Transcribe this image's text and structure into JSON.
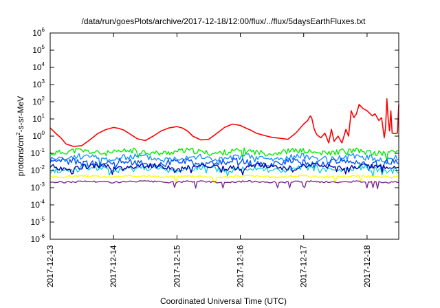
{
  "chart_data": {
    "type": "line",
    "title": "/data/run/goesPlots/archive/2017-12-18/12:00/flux/../flux/5daysEarthFluxes.txt",
    "xlabel": "Coordinated Universal Time (UTC)",
    "ylabel_parts": [
      "protons/cm",
      "2",
      "-s-sr-MeV"
    ],
    "xlim": [
      "2017-12-13",
      "2017-12-18T12:00"
    ],
    "ylim": [
      1e-06,
      1000000.0
    ],
    "y_scale": "log",
    "grid": false,
    "legend": "none",
    "x_ticks": [
      "2017-12-13",
      "2017-12-14",
      "2017-12-15",
      "2017-12-16",
      "2017-12-17",
      "2017-12-18"
    ],
    "y_ticks": [
      {
        "base": "10",
        "exp": "-6"
      },
      {
        "base": "10",
        "exp": "-5"
      },
      {
        "base": "10",
        "exp": "-4"
      },
      {
        "base": "10",
        "exp": "-3"
      },
      {
        "base": "10",
        "exp": "-2"
      },
      {
        "base": "10",
        "exp": "-1"
      },
      {
        "base": "10",
        "exp": "0"
      },
      {
        "base": "10",
        "exp": "1"
      },
      {
        "base": "10",
        "exp": "2"
      },
      {
        "base": "10",
        "exp": "3"
      },
      {
        "base": "10",
        "exp": "4"
      },
      {
        "base": "10",
        "exp": "5"
      },
      {
        "base": "10",
        "exp": "6"
      }
    ],
    "series": [
      {
        "color": "#ff0000",
        "width": 1.6,
        "points": [
          [
            "2017-12-13T00:00",
            3
          ],
          [
            "2017-12-13T02:00",
            1.5
          ],
          [
            "2017-12-13T04:00",
            0.8
          ],
          [
            "2017-12-13T06:00",
            0.35
          ],
          [
            "2017-12-13T09:00",
            0.25
          ],
          [
            "2017-12-13T12:00",
            0.28
          ],
          [
            "2017-12-13T15:00",
            0.6
          ],
          [
            "2017-12-13T18:00",
            1.4
          ],
          [
            "2017-12-13T21:00",
            2.4
          ],
          [
            "2017-12-14T00:00",
            3.2
          ],
          [
            "2017-12-14T02:00",
            2.8
          ],
          [
            "2017-12-14T04:00",
            2.2
          ],
          [
            "2017-12-14T06:00",
            1.4
          ],
          [
            "2017-12-14T09:00",
            0.7
          ],
          [
            "2017-12-14T12:00",
            0.55
          ],
          [
            "2017-12-14T15:00",
            1.0
          ],
          [
            "2017-12-14T18:00",
            2.0
          ],
          [
            "2017-12-14T21:00",
            3.0
          ],
          [
            "2017-12-15T00:00",
            3.6
          ],
          [
            "2017-12-15T02:00",
            3.0
          ],
          [
            "2017-12-15T04:00",
            2.0
          ],
          [
            "2017-12-15T06:00",
            1.0
          ],
          [
            "2017-12-15T09:00",
            0.6
          ],
          [
            "2017-12-15T12:00",
            0.65
          ],
          [
            "2017-12-15T15:00",
            1.4
          ],
          [
            "2017-12-15T18:00",
            3.2
          ],
          [
            "2017-12-15T21:00",
            5.0
          ],
          [
            "2017-12-16T00:00",
            4.2
          ],
          [
            "2017-12-16T02:00",
            3.0
          ],
          [
            "2017-12-16T04:00",
            2.2
          ],
          [
            "2017-12-16T06:00",
            1.5
          ],
          [
            "2017-12-16T09:00",
            1.1
          ],
          [
            "2017-12-16T12:00",
            0.85
          ],
          [
            "2017-12-16T15:00",
            0.75
          ],
          [
            "2017-12-16T18:00",
            0.65
          ],
          [
            "2017-12-16T21:00",
            1.5
          ],
          [
            "2017-12-17T00:00",
            5.0
          ],
          [
            "2017-12-17T01:30",
            8.0
          ],
          [
            "2017-12-17T02:30",
            15
          ],
          [
            "2017-12-17T03:00",
            12
          ],
          [
            "2017-12-17T04:00",
            2.5
          ],
          [
            "2017-12-17T05:00",
            1.2
          ],
          [
            "2017-12-17T06:30",
            0.8
          ],
          [
            "2017-12-17T08:00",
            1.5
          ],
          [
            "2017-12-17T09:30",
            0.4
          ],
          [
            "2017-12-17T10:30",
            2.5
          ],
          [
            "2017-12-17T11:30",
            0.5
          ],
          [
            "2017-12-17T13:00",
            1.0
          ],
          [
            "2017-12-17T14:30",
            0.4
          ],
          [
            "2017-12-17T16:00",
            2.5
          ],
          [
            "2017-12-17T17:00",
            1.0
          ],
          [
            "2017-12-17T18:00",
            30
          ],
          [
            "2017-12-17T19:00",
            12
          ],
          [
            "2017-12-17T20:00",
            20
          ],
          [
            "2017-12-17T21:00",
            70
          ],
          [
            "2017-12-17T22:30",
            40
          ],
          [
            "2017-12-18T00:00",
            30
          ],
          [
            "2017-12-18T02:00",
            15
          ],
          [
            "2017-12-18T03:00",
            20
          ],
          [
            "2017-12-18T04:30",
            8
          ],
          [
            "2017-12-18T05:30",
            12
          ],
          [
            "2017-12-18T06:30",
            0.8
          ],
          [
            "2017-12-18T07:00",
            3
          ],
          [
            "2017-12-18T07:30",
            150
          ],
          [
            "2017-12-18T08:00",
            10
          ],
          [
            "2017-12-18T08:30",
            2
          ],
          [
            "2017-12-18T09:00",
            30
          ],
          [
            "2017-12-18T09:30",
            1.5
          ],
          [
            "2017-12-18T10:30",
            1.4
          ],
          [
            "2017-12-18T11:30",
            1.5
          ],
          [
            "2017-12-18T12:00",
            70
          ]
        ]
      },
      {
        "color": "#00ee00",
        "width": 1.4,
        "base": 0.12,
        "amp": 0.16,
        "seed": 11
      },
      {
        "color": "#1e90ff",
        "width": 1.4,
        "base": 0.055,
        "amp": 0.18,
        "seed": 23
      },
      {
        "color": "#0050ff",
        "width": 1.4,
        "base": 0.028,
        "amp": 0.2,
        "seed": 37
      },
      {
        "color": "#00cccc",
        "width": 1.2,
        "base": 0.012,
        "amp": 0.18,
        "seed": 41
      },
      {
        "color": "#0000aa",
        "width": 1.4,
        "base": 0.016,
        "amp": 0.15,
        "seed": 53
      },
      {
        "color": "#ffff00",
        "width": 1.4,
        "base": 0.0045,
        "amp": 0.06,
        "seed": 67
      },
      {
        "color": "#7a2b8a",
        "width": 1.4,
        "base": 0.0022,
        "amp": 0.05,
        "seed": 79
      }
    ]
  }
}
